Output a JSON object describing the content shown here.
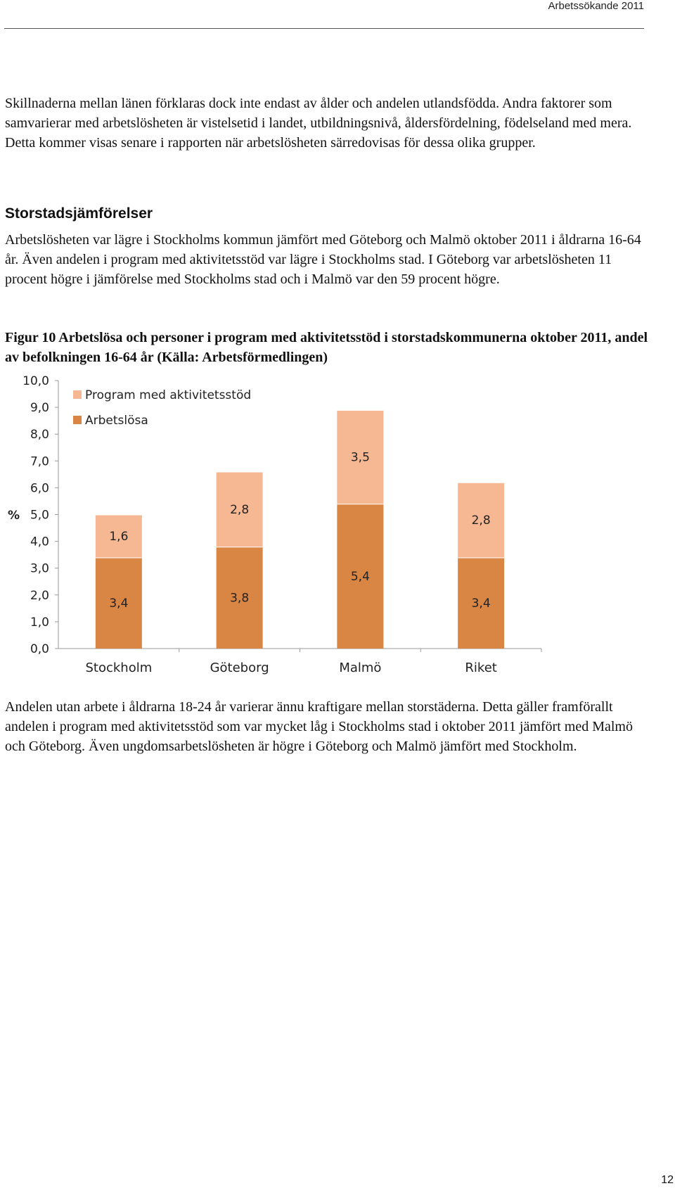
{
  "header": {
    "title": "Arbetssökande 2011"
  },
  "paragraphs": [
    "Skillnaderna mellan länen förklaras dock inte endast av ålder och andelen utlandsfödda. Andra faktorer som samvarierar med arbetslösheten är vistelsetid i landet, utbildningsnivå, åldersfördelning, födelseland med mera. Detta kommer visas senare i rapporten när arbetslösheten särredovisas för dessa olika grupper.",
    "Arbetslösheten var lägre i Stockholms kommun jämfört med Göteborg och Malmö oktober 2011 i åldrarna 16-64 år. Även andelen i program med aktivitetsstöd var lägre i Stockholms stad. I Göteborg var arbetslösheten 11 procent högre i jämförelse med Stockholms stad och i Malmö var den 59 procent högre.",
    "Andelen utan arbete i åldrarna 18-24 år varierar ännu kraftigare mellan storstäderna. Detta gäller framförallt andelen i program med aktivitetsstöd som var mycket låg i Stockholms stad i oktober 2011 jämfört med Malmö och Göteborg. Även ungdomsarbetslösheten är högre i Göteborg och Malmö jämfört med Stockholm."
  ],
  "section_heading": "Storstadsjämförelser",
  "figure_caption": "Figur 10 Arbetslösa och personer i program med aktivitetsstöd i storstadskommunerna oktober 2011, andel av befolkningen 16-64 år (Källa: Arbetsförmedlingen)",
  "page_number": "12",
  "chart_data": {
    "type": "bar",
    "stacked": true,
    "categories": [
      "Stockholm",
      "Göteborg",
      "Malmö",
      "Riket"
    ],
    "series": [
      {
        "name": "Arbetslösa",
        "values": [
          3.4,
          3.8,
          5.4,
          3.4
        ],
        "labels": [
          "3,4",
          "3,8",
          "5,4",
          "3,4"
        ],
        "color": "#d98544"
      },
      {
        "name": "Program med aktivitetsstöd",
        "values": [
          1.6,
          2.8,
          3.5,
          2.8
        ],
        "labels": [
          "1,6",
          "2,8",
          "3,5",
          "2,8"
        ],
        "color": "#f6b793"
      }
    ],
    "ylabel": "%",
    "ylim": [
      0,
      10
    ],
    "yticks": [
      "0,0",
      "1,0",
      "2,0",
      "3,0",
      "4,0",
      "5,0",
      "6,0",
      "7,0",
      "8,0",
      "9,0",
      "10,0"
    ],
    "legend_position": "top-left",
    "grid": false
  }
}
